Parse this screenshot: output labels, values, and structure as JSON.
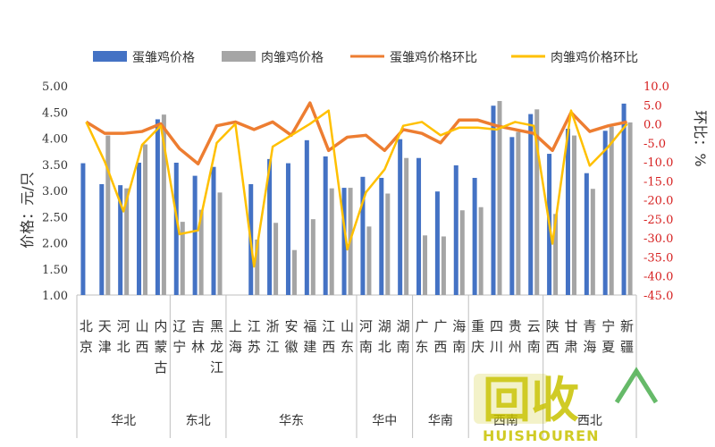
{
  "chart_data": {
    "type": "bar",
    "legend_position": "top",
    "ylabel": "价格：元/只",
    "y2label": "环比：%",
    "ylim": [
      1.0,
      5.0
    ],
    "y2lim": [
      -45.0,
      10.0
    ],
    "y_ticks": [
      "5.00",
      "4.50",
      "4.00",
      "3.50",
      "3.00",
      "2.50",
      "2.00",
      "1.50",
      "1.00"
    ],
    "y2_ticks": [
      "10.0",
      "5.0",
      "0.0",
      "-5.0",
      "-10.0",
      "-15.0",
      "-20.0",
      "-25.0",
      "-30.0",
      "-35.0",
      "-40.0",
      "-45.0"
    ],
    "categories": [
      "北京",
      "天津",
      "河北",
      "山西",
      "内蒙古",
      "辽宁",
      "吉林",
      "黑龙江",
      "上海",
      "江苏",
      "浙江",
      "安徽",
      "福建",
      "江西",
      "山东",
      "河南",
      "湖北",
      "湖南",
      "广东",
      "广西",
      "海南",
      "重庆",
      "四川",
      "贵州",
      "云南",
      "陕西",
      "甘肃",
      "青海",
      "宁夏",
      "新疆"
    ],
    "regions": [
      {
        "name": "华北",
        "start": 0,
        "end": 4
      },
      {
        "name": "东北",
        "start": 5,
        "end": 7
      },
      {
        "name": "华东",
        "start": 8,
        "end": 14
      },
      {
        "name": "华中",
        "start": 15,
        "end": 17
      },
      {
        "name": "华南",
        "start": 18,
        "end": 20
      },
      {
        "name": "西南",
        "start": 21,
        "end": 24
      },
      {
        "name": "西北",
        "start": 25,
        "end": 29
      }
    ],
    "series": [
      {
        "name": "蛋雏鸡价格",
        "type": "bar",
        "axis": "left",
        "color": "#4472c4",
        "values": [
          3.52,
          3.12,
          3.1,
          3.53,
          4.36,
          3.53,
          3.28,
          3.45,
          null,
          3.12,
          3.6,
          3.52,
          3.96,
          3.65,
          3.05,
          3.26,
          3.24,
          3.98,
          3.62,
          2.98,
          3.48,
          3.24,
          4.62,
          4.02,
          4.46,
          3.7,
          4.18,
          3.33,
          4.14,
          4.66
        ]
      },
      {
        "name": "肉雏鸡价格",
        "type": "bar",
        "axis": "left",
        "color": "#a5a5a5",
        "values": [
          null,
          4.05,
          3.04,
          3.88,
          4.45,
          2.4,
          2.63,
          2.96,
          null,
          2.06,
          2.38,
          1.86,
          2.45,
          3.04,
          3.05,
          2.31,
          2.94,
          3.62,
          2.14,
          2.12,
          2.62,
          2.68,
          4.71,
          4.12,
          4.55,
          2.55,
          4.05,
          3.03,
          4.22,
          4.3
        ]
      },
      {
        "name": "蛋雏鸡价格环比",
        "type": "line",
        "axis": "right",
        "color": "#ed7d31",
        "values": [
          0.5,
          -2.5,
          -2.5,
          -2.0,
          0.0,
          -6.5,
          -10.5,
          -0.5,
          0.5,
          -1.5,
          0.5,
          -3.0,
          5.5,
          -7.0,
          -3.5,
          -3.0,
          -7.0,
          -1.5,
          -2.5,
          -5.0,
          1.0,
          1.0,
          -0.5,
          -1.5,
          -2.5,
          -7.0,
          3.0,
          -2.0,
          -0.5,
          0.5
        ]
      },
      {
        "name": "肉雏鸡价格环比",
        "type": "line",
        "axis": "right",
        "color": "#ffc000",
        "values": [
          0.5,
          -10.0,
          -23.0,
          -5.5,
          -0.5,
          -29.0,
          -28.0,
          -5.0,
          0.0,
          -37.5,
          -6.0,
          -3.0,
          0.0,
          3.5,
          -33.0,
          -18.0,
          -12.0,
          -0.5,
          0.5,
          -3.0,
          -1.0,
          -1.0,
          -1.5,
          0.5,
          -0.5,
          -31.5,
          3.5,
          -11.0,
          -6.0,
          0.0
        ]
      }
    ]
  },
  "watermark": {
    "logo": "回收",
    "brand": "HUISHOUREN",
    "color": "#c8c200"
  }
}
